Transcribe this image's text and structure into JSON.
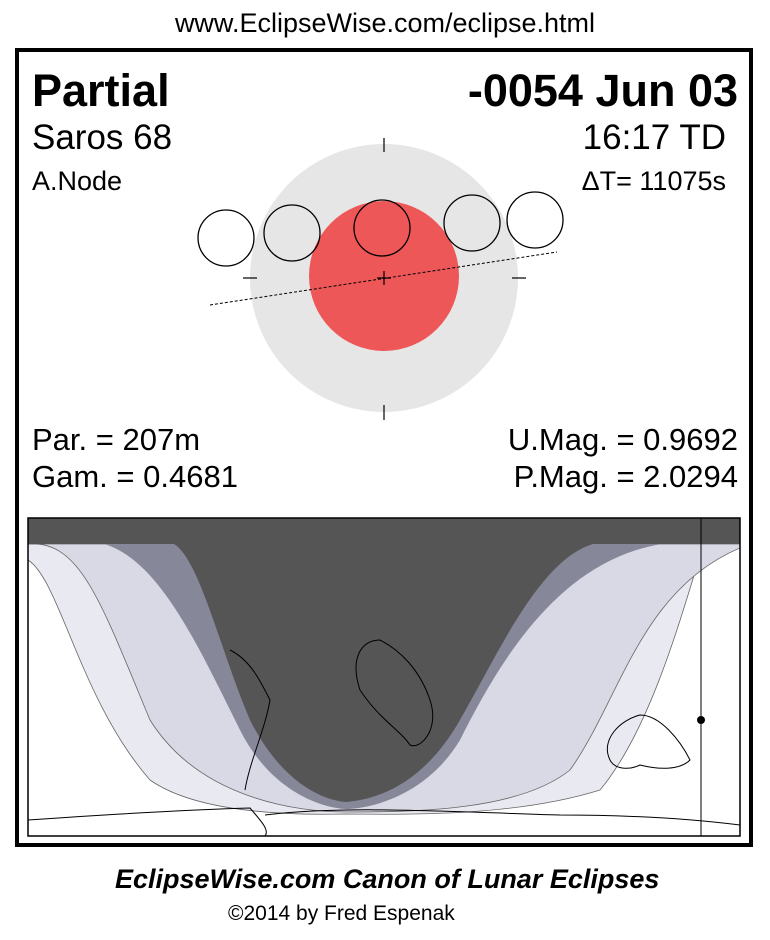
{
  "header_url": "www.EclipseWise.com/eclipse.html",
  "eclipse": {
    "type": "Partial",
    "date": "-0054 Jun 03",
    "saros": "Saros  68",
    "time": "16:17 TD",
    "node": "A.Node",
    "delta_t": "ΔT=  11075s",
    "par": "Par. = 207m",
    "gam": "Gam. = 0.4681",
    "umag": "U.Mag. = 0.9692",
    "pmag": "P.Mag. = 2.0294"
  },
  "colors": {
    "umbra": "#ee5757",
    "penumbra": "#e6e6e6",
    "night": "#555555",
    "partial_zone": "#87879a",
    "penumbral_zone": "#d9d9e6",
    "outer_zone": "#e9e9f1"
  },
  "footer": {
    "title": "EclipseWise.com Canon of Lunar Eclipses",
    "copyright": "©2014 by Fred Espenak"
  }
}
